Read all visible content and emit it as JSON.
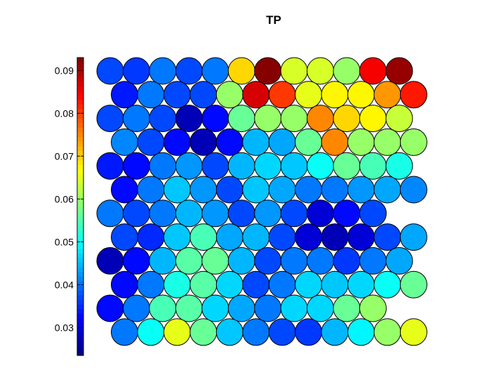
{
  "chart_data": {
    "type": "heatmap",
    "subtype": "som-hexagonal-component-plane",
    "title": "TP",
    "colormap": "jet",
    "colorbar": {
      "range": [
        0.0235,
        0.093
      ],
      "ticks": [
        0.03,
        0.04,
        0.05,
        0.06,
        0.07,
        0.08,
        0.09
      ],
      "tick_labels": [
        "0.03",
        "0.04",
        "0.05",
        "0.06",
        "0.07",
        "0.08",
        "0.09"
      ],
      "levels": 64
    },
    "grid": {
      "rows": 12,
      "cols": 13,
      "layout": "hexagonal",
      "odd_rows_shifted": "right"
    },
    "values": [
      [
        0.037,
        0.036,
        0.04,
        0.037,
        0.04,
        0.07,
        0.093,
        0.064,
        0.064,
        0.06,
        0.085,
        0.091,
        null
      ],
      [
        0.034,
        0.04,
        0.037,
        0.037,
        0.06,
        0.087,
        0.08,
        0.065,
        0.068,
        0.068,
        0.074,
        0.083,
        null
      ],
      [
        0.037,
        0.04,
        0.037,
        0.027,
        0.033,
        0.057,
        0.06,
        0.06,
        0.075,
        0.07,
        0.067,
        0.063,
        null
      ],
      [
        0.041,
        0.037,
        0.033,
        0.027,
        0.033,
        0.045,
        0.044,
        0.057,
        0.075,
        0.06,
        0.06,
        0.06,
        null
      ],
      [
        0.034,
        0.033,
        0.04,
        0.042,
        0.037,
        0.045,
        0.047,
        0.046,
        0.05,
        0.057,
        0.054,
        0.051,
        null
      ],
      [
        0.033,
        0.04,
        0.046,
        0.043,
        0.037,
        0.046,
        0.044,
        0.04,
        0.04,
        0.043,
        0.044,
        0.041,
        null
      ],
      [
        0.04,
        0.037,
        0.04,
        0.045,
        0.043,
        0.037,
        0.043,
        0.037,
        0.03,
        0.033,
        0.037,
        null,
        null
      ],
      [
        0.037,
        0.035,
        0.046,
        0.054,
        0.044,
        0.045,
        0.037,
        0.03,
        0.027,
        0.03,
        0.037,
        0.044,
        null
      ],
      [
        0.027,
        0.033,
        0.045,
        0.055,
        0.057,
        0.045,
        0.037,
        0.04,
        0.04,
        0.036,
        0.04,
        0.044,
        null
      ],
      [
        0.033,
        0.04,
        0.051,
        0.055,
        0.047,
        0.037,
        0.04,
        0.047,
        0.046,
        0.047,
        0.05,
        0.057,
        null
      ],
      [
        0.033,
        0.04,
        0.054,
        0.055,
        0.047,
        0.044,
        0.04,
        0.047,
        0.047,
        0.057,
        0.06,
        null,
        null
      ],
      [
        0.04,
        0.05,
        0.065,
        0.057,
        0.046,
        0.04,
        0.037,
        0.036,
        0.045,
        0.049,
        0.06,
        0.065,
        null
      ]
    ]
  }
}
